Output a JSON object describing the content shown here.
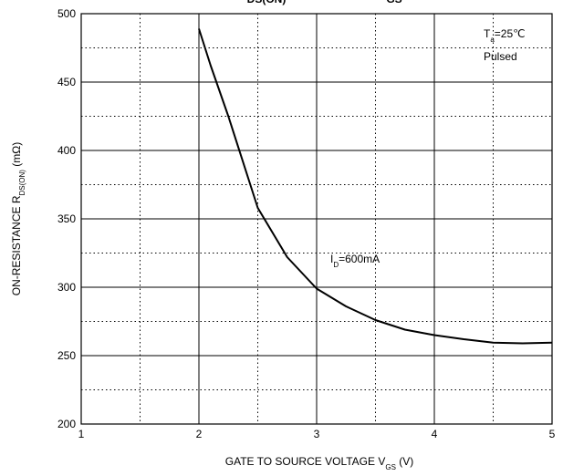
{
  "chart_data": {
    "type": "line",
    "title_fragments": [
      "DS(ON)",
      "GS"
    ],
    "x_label": {
      "text": "GATE TO SOURCE VOLTAGE   V",
      "sub": "GS",
      "after": "   (V)"
    },
    "y_label": {
      "text": "ON-RESISTANCE   R",
      "sub": "DS(ON)",
      "after": "   (mΩ)"
    },
    "annotations": [
      {
        "text": "T",
        "sub": "a",
        "after": "=25℃"
      },
      {
        "text": "Pulsed"
      },
      {
        "text": "I",
        "sub": "D",
        "after": "=600mA"
      }
    ],
    "x": [
      2,
      2.1,
      2.25,
      2.5,
      2.75,
      3,
      3.25,
      3.5,
      3.75,
      4,
      4.25,
      4.5,
      4.75,
      5
    ],
    "series": [
      {
        "color": "#000000",
        "values": [
          489,
          462,
          425,
          358,
          322,
          299,
          286,
          276,
          269,
          265,
          262,
          259.5,
          259,
          259.5
        ]
      }
    ],
    "xlim": [
      1,
      5
    ],
    "xticks": [
      1,
      2,
      3,
      4,
      5
    ],
    "ylim": [
      200,
      500
    ],
    "yticks": [
      200,
      250,
      300,
      350,
      400,
      450,
      500
    ],
    "minor_xticks": [
      1.5,
      2.5,
      3.5,
      4.5
    ],
    "minor_yticks": [
      225,
      275,
      325,
      375,
      425,
      475
    ],
    "grid": true
  }
}
